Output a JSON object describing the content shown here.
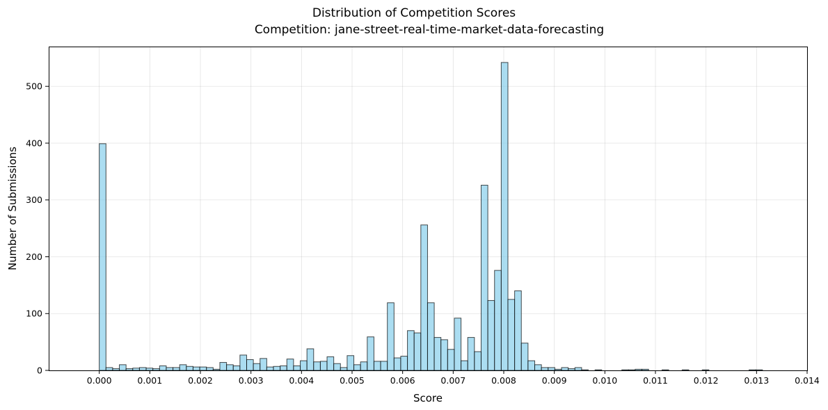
{
  "chart_data": {
    "type": "bar",
    "title": "Distribution of Competition Scores",
    "subtitle": "Competition: jane-street-real-time-market-data-forecasting",
    "xlabel": "Score",
    "ylabel": "Number of Submissions",
    "xlim": [
      -0.001,
      0.014
    ],
    "ylim": [
      0,
      570
    ],
    "xticks": [
      "0.000",
      "0.001",
      "0.002",
      "0.003",
      "0.004",
      "0.005",
      "0.006",
      "0.007",
      "0.008",
      "0.009",
      "0.010",
      "0.011",
      "0.012",
      "0.013",
      "0.014"
    ],
    "yticks": [
      "0",
      "100",
      "200",
      "300",
      "400",
      "500"
    ],
    "grid": true,
    "bin_start": 0.0,
    "bin_width": 0.0001325,
    "values": [
      399,
      5,
      3,
      10,
      3,
      4,
      5,
      4,
      3,
      8,
      5,
      5,
      10,
      7,
      6,
      6,
      5,
      2,
      14,
      10,
      8,
      27,
      19,
      12,
      21,
      6,
      7,
      8,
      20,
      8,
      17,
      38,
      15,
      16,
      24,
      12,
      5,
      26,
      10,
      15,
      59,
      16,
      16,
      119,
      22,
      25,
      70,
      66,
      256,
      119,
      58,
      54,
      37,
      92,
      17,
      58,
      33,
      326,
      123,
      176,
      542,
      125,
      140,
      48,
      17,
      10,
      5,
      5,
      2,
      5,
      3,
      5,
      1,
      0,
      1,
      0,
      0,
      0,
      1,
      1,
      2,
      2,
      0,
      0,
      1,
      0,
      0,
      1,
      0,
      0,
      1,
      0,
      0,
      0,
      0,
      0,
      0,
      1,
      1,
      0
    ]
  }
}
